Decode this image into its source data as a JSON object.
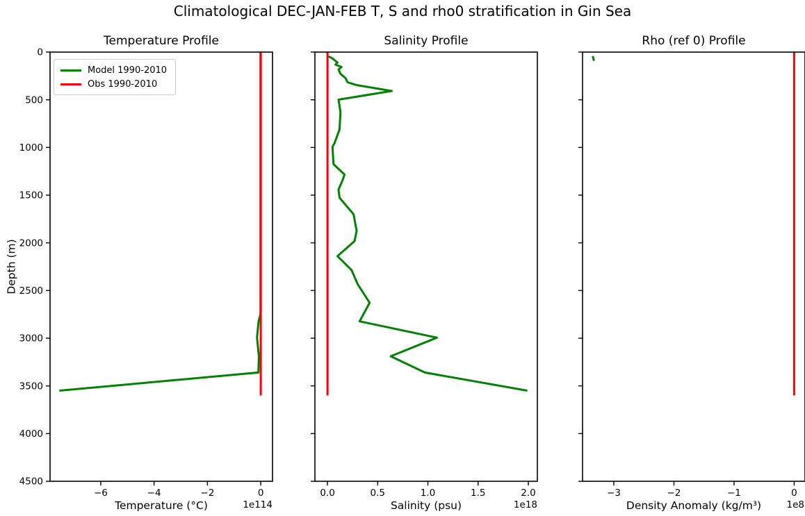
{
  "figure": {
    "suptitle": "Climatological DEC-JAN-FEB T, S and rho0 stratification in Gin Sea",
    "ylabel": "Depth (m)",
    "ylim": [
      0,
      4500
    ],
    "y_axis_inverted": true,
    "yticks": [
      0,
      500,
      1000,
      1500,
      2000,
      2500,
      3000,
      3500,
      4000,
      4500
    ],
    "grid": false,
    "colors": {
      "model": "#008000",
      "obs": "#ff0000",
      "frame": "#000000",
      "text": "#000000"
    },
    "legend": {
      "position": "upper-left",
      "items": [
        {
          "series": "model",
          "label": "Model 1990-2010"
        },
        {
          "series": "obs",
          "label": "Obs 1990-2010"
        }
      ]
    }
  },
  "chart_data": [
    {
      "type": "line",
      "id": "temperature",
      "title": "Temperature Profile",
      "xlabel": "Temperature (°C)",
      "offset_text": "1e114",
      "xlim": [
        -7.9,
        0.44
      ],
      "xticks": [
        -6,
        -4,
        -2,
        0
      ],
      "xtick_labels": [
        "−6",
        "−4",
        "−2",
        "0"
      ],
      "series": [
        {
          "role": "model",
          "name": "Model 1990-2010",
          "color": "#008000",
          "units": "1e114 °C",
          "points": [
            [
              -0.01,
              5
            ],
            [
              -0.01,
              2750
            ],
            [
              -0.08,
              2823
            ],
            [
              -0.14,
              2994
            ],
            [
              -0.07,
              3189
            ],
            [
              -0.09,
              3360
            ],
            [
              -7.55,
              3550
            ]
          ]
        },
        {
          "role": "obs",
          "name": "Obs 1990-2010",
          "color": "#ff0000",
          "units": "°C",
          "points": [
            [
              0,
              0
            ],
            [
              0,
              3600
            ]
          ]
        }
      ]
    },
    {
      "type": "line",
      "id": "salinity",
      "title": "Salinity Profile",
      "xlabel": "Salinity (psu)",
      "offset_text": "1e18",
      "xlim": [
        -0.125,
        2.09
      ],
      "xticks": [
        0,
        0.5,
        1.0,
        1.5,
        2.0
      ],
      "xtick_labels": [
        "0.0",
        "0.5",
        "1.0",
        "1.5",
        "2.0"
      ],
      "series": [
        {
          "role": "model",
          "name": "Model 1990-2010",
          "color": "#008000",
          "units": "1e18 psu",
          "points": [
            [
              0.01,
              45
            ],
            [
              0.05,
              66
            ],
            [
              0.1,
              110
            ],
            [
              0.08,
              132
            ],
            [
              0.14,
              156
            ],
            [
              0.11,
              181
            ],
            [
              0.13,
              229
            ],
            [
              0.18,
              273
            ],
            [
              0.2,
              317
            ],
            [
              0.29,
              346
            ],
            [
              0.64,
              408
            ],
            [
              0.11,
              499
            ],
            [
              0.13,
              628
            ],
            [
              0.12,
              810
            ],
            [
              0.07,
              956
            ],
            [
              0.05,
              993
            ],
            [
              0.06,
              1175
            ],
            [
              0.17,
              1284
            ],
            [
              0.15,
              1345
            ],
            [
              0.11,
              1442
            ],
            [
              0.12,
              1527
            ],
            [
              0.26,
              1700
            ],
            [
              0.29,
              1872
            ],
            [
              0.27,
              1981
            ],
            [
              0.1,
              2139
            ],
            [
              0.24,
              2286
            ],
            [
              0.3,
              2432
            ],
            [
              0.42,
              2628
            ],
            [
              0.32,
              2823
            ],
            [
              1.09,
              2994
            ],
            [
              0.63,
              3189
            ],
            [
              0.97,
              3360
            ],
            [
              1.99,
              3550
            ]
          ]
        },
        {
          "role": "obs",
          "name": "Obs 1990-2010",
          "color": "#ff0000",
          "units": "psu",
          "points": [
            [
              0,
              0
            ],
            [
              0,
              3600
            ]
          ]
        }
      ]
    },
    {
      "type": "line",
      "id": "rho0",
      "title": "Rho (ref 0) Profile",
      "xlabel": "Density Anomaly (kg/m³)",
      "offset_text": "1e8",
      "xlim": [
        -3.52,
        0.18
      ],
      "xticks": [
        -3,
        -2,
        -1,
        0
      ],
      "xtick_labels": [
        "−3",
        "−2",
        "−1",
        "0"
      ],
      "series": [
        {
          "role": "model",
          "name": "Model 1990-2010",
          "color": "#008000",
          "units": "1e8 kg/m³",
          "points": [
            [
              -3.35,
              42
            ],
            [
              -3.33,
              92
            ]
          ]
        },
        {
          "role": "obs",
          "name": "Obs 1990-2010",
          "color": "#ff0000",
          "units": "kg/m³",
          "points": [
            [
              0,
              0
            ],
            [
              0,
              3600
            ]
          ]
        }
      ]
    }
  ]
}
